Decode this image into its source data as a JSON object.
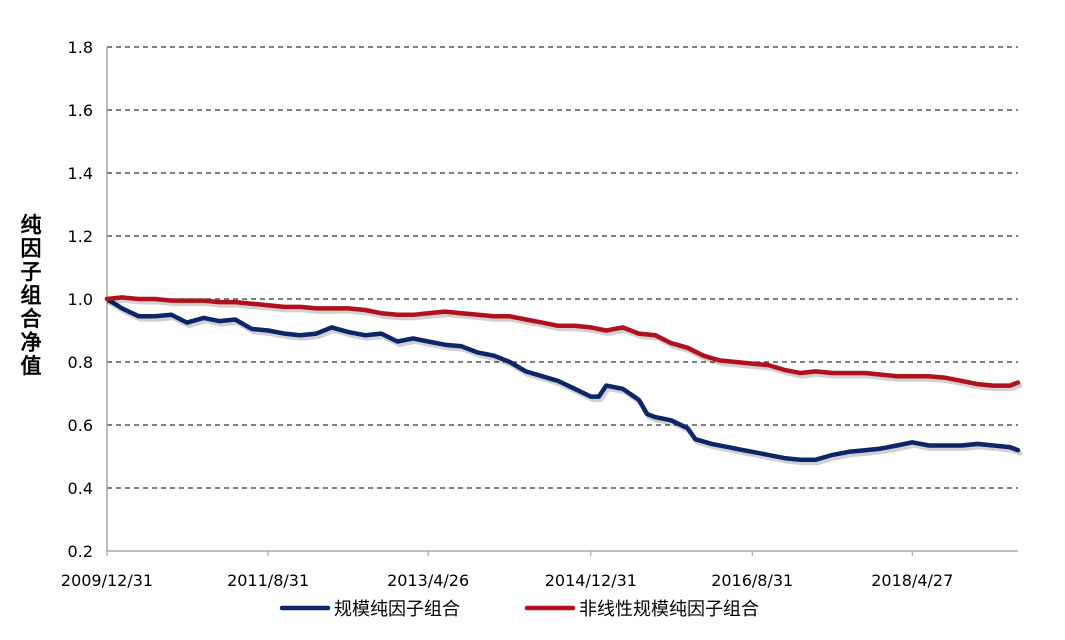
{
  "chart_data": {
    "type": "line",
    "title": "",
    "xlabel": "",
    "ylabel": "纯因子组合净值",
    "ylim": [
      0.2,
      1.8
    ],
    "yticks": [
      "0.2",
      "0.4",
      "0.6",
      "0.8",
      "1.0",
      "1.2",
      "1.4",
      "1.6",
      "1.8"
    ],
    "xlim": [
      "2009-12-31",
      "2019-05-31"
    ],
    "xticks": [
      {
        "date": "2009-12-31",
        "label": "2009/12/31"
      },
      {
        "date": "2011-08-31",
        "label": "2011/8/31"
      },
      {
        "date": "2013-04-26",
        "label": "2013/4/26"
      },
      {
        "date": "2014-12-31",
        "label": "2014/12/31"
      },
      {
        "date": "2016-08-31",
        "label": "2016/8/31"
      },
      {
        "date": "2018-04-27",
        "label": "2018/4/27"
      }
    ],
    "grid": "horizontal-dashed",
    "legend_position": "bottom",
    "series": [
      {
        "name": "规模纯因子组合",
        "color": "#0c2669",
        "points": [
          [
            "2009-12-31",
            1.0
          ],
          [
            "2010-02-26",
            0.97
          ],
          [
            "2010-04-30",
            0.945
          ],
          [
            "2010-06-30",
            0.945
          ],
          [
            "2010-08-31",
            0.95
          ],
          [
            "2010-10-29",
            0.925
          ],
          [
            "2010-12-31",
            0.94
          ],
          [
            "2011-02-28",
            0.93
          ],
          [
            "2011-04-29",
            0.935
          ],
          [
            "2011-06-30",
            0.905
          ],
          [
            "2011-08-31",
            0.9
          ],
          [
            "2011-10-31",
            0.89
          ],
          [
            "2011-12-30",
            0.885
          ],
          [
            "2012-02-29",
            0.89
          ],
          [
            "2012-04-27",
            0.91
          ],
          [
            "2012-06-29",
            0.895
          ],
          [
            "2012-08-31",
            0.885
          ],
          [
            "2012-10-31",
            0.89
          ],
          [
            "2012-12-31",
            0.865
          ],
          [
            "2013-02-28",
            0.875
          ],
          [
            "2013-04-26",
            0.865
          ],
          [
            "2013-06-28",
            0.855
          ],
          [
            "2013-08-30",
            0.85
          ],
          [
            "2013-10-31",
            0.83
          ],
          [
            "2013-12-31",
            0.82
          ],
          [
            "2014-02-28",
            0.8
          ],
          [
            "2014-04-30",
            0.77
          ],
          [
            "2014-06-30",
            0.755
          ],
          [
            "2014-08-29",
            0.74
          ],
          [
            "2014-10-31",
            0.715
          ],
          [
            "2014-12-31",
            0.69
          ],
          [
            "2015-01-30",
            0.69
          ],
          [
            "2015-02-27",
            0.725
          ],
          [
            "2015-04-30",
            0.715
          ],
          [
            "2015-06-30",
            0.68
          ],
          [
            "2015-07-31",
            0.635
          ],
          [
            "2015-08-31",
            0.625
          ],
          [
            "2015-10-30",
            0.615
          ],
          [
            "2015-12-31",
            0.59
          ],
          [
            "2016-01-29",
            0.555
          ],
          [
            "2016-03-31",
            0.54
          ],
          [
            "2016-05-31",
            0.53
          ],
          [
            "2016-07-29",
            0.52
          ],
          [
            "2016-08-31",
            0.515
          ],
          [
            "2016-10-31",
            0.505
          ],
          [
            "2016-12-30",
            0.495
          ],
          [
            "2017-02-28",
            0.49
          ],
          [
            "2017-04-28",
            0.49
          ],
          [
            "2017-06-30",
            0.505
          ],
          [
            "2017-08-31",
            0.515
          ],
          [
            "2017-10-31",
            0.52
          ],
          [
            "2017-12-29",
            0.525
          ],
          [
            "2018-02-28",
            0.535
          ],
          [
            "2018-04-27",
            0.545
          ],
          [
            "2018-06-29",
            0.535
          ],
          [
            "2018-08-31",
            0.535
          ],
          [
            "2018-10-31",
            0.535
          ],
          [
            "2018-12-28",
            0.54
          ],
          [
            "2019-02-28",
            0.535
          ],
          [
            "2019-04-30",
            0.53
          ],
          [
            "2019-05-31",
            0.52
          ]
        ]
      },
      {
        "name": "非线性规模纯因子组合",
        "color": "#b0111c",
        "points": [
          [
            "2009-12-31",
            1.0
          ],
          [
            "2010-02-26",
            1.005
          ],
          [
            "2010-04-30",
            1.0
          ],
          [
            "2010-06-30",
            1.0
          ],
          [
            "2010-08-31",
            0.995
          ],
          [
            "2010-10-29",
            0.995
          ],
          [
            "2010-12-31",
            0.995
          ],
          [
            "2011-02-28",
            0.99
          ],
          [
            "2011-04-29",
            0.99
          ],
          [
            "2011-06-30",
            0.985
          ],
          [
            "2011-08-31",
            0.98
          ],
          [
            "2011-10-31",
            0.975
          ],
          [
            "2011-12-30",
            0.975
          ],
          [
            "2012-02-29",
            0.97
          ],
          [
            "2012-04-27",
            0.97
          ],
          [
            "2012-06-29",
            0.97
          ],
          [
            "2012-08-31",
            0.965
          ],
          [
            "2012-10-31",
            0.955
          ],
          [
            "2012-12-31",
            0.95
          ],
          [
            "2013-02-28",
            0.95
          ],
          [
            "2013-04-26",
            0.955
          ],
          [
            "2013-06-28",
            0.96
          ],
          [
            "2013-08-30",
            0.955
          ],
          [
            "2013-10-31",
            0.95
          ],
          [
            "2013-12-31",
            0.945
          ],
          [
            "2014-02-28",
            0.945
          ],
          [
            "2014-04-30",
            0.935
          ],
          [
            "2014-06-30",
            0.925
          ],
          [
            "2014-08-29",
            0.915
          ],
          [
            "2014-10-31",
            0.915
          ],
          [
            "2014-12-31",
            0.91
          ],
          [
            "2015-02-27",
            0.9
          ],
          [
            "2015-04-30",
            0.91
          ],
          [
            "2015-06-30",
            0.89
          ],
          [
            "2015-08-31",
            0.885
          ],
          [
            "2015-10-30",
            0.86
          ],
          [
            "2015-12-31",
            0.845
          ],
          [
            "2016-02-29",
            0.82
          ],
          [
            "2016-04-29",
            0.805
          ],
          [
            "2016-06-30",
            0.8
          ],
          [
            "2016-08-31",
            0.795
          ],
          [
            "2016-10-31",
            0.79
          ],
          [
            "2016-12-30",
            0.775
          ],
          [
            "2017-02-28",
            0.765
          ],
          [
            "2017-04-28",
            0.77
          ],
          [
            "2017-06-30",
            0.765
          ],
          [
            "2017-08-31",
            0.765
          ],
          [
            "2017-10-31",
            0.765
          ],
          [
            "2017-12-29",
            0.76
          ],
          [
            "2018-02-28",
            0.755
          ],
          [
            "2018-04-27",
            0.755
          ],
          [
            "2018-06-29",
            0.755
          ],
          [
            "2018-08-31",
            0.75
          ],
          [
            "2018-10-31",
            0.74
          ],
          [
            "2018-12-28",
            0.73
          ],
          [
            "2019-02-28",
            0.725
          ],
          [
            "2019-04-30",
            0.725
          ],
          [
            "2019-05-31",
            0.735
          ]
        ]
      }
    ]
  }
}
